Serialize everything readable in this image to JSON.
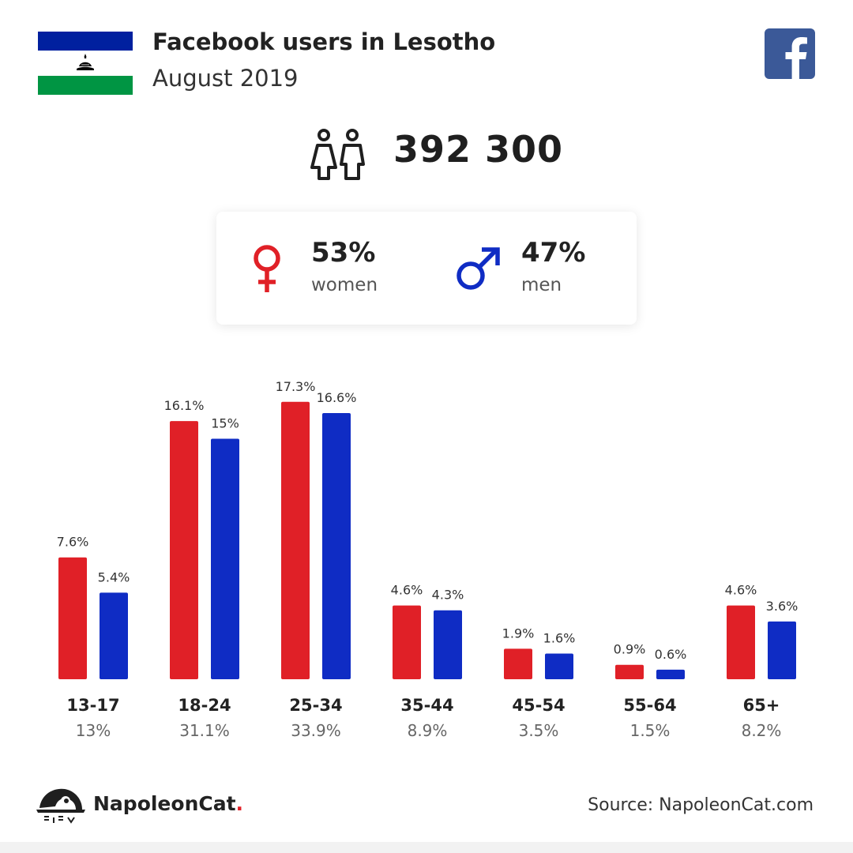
{
  "header": {
    "title": "Facebook users in Lesotho",
    "subtitle": "August 2019"
  },
  "users": {
    "total": "392 300"
  },
  "gender": {
    "women_pct": "53%",
    "women_label": "women",
    "men_pct": "47%",
    "men_label": "men"
  },
  "colors": {
    "women": "#E02027",
    "men": "#0F2CC4",
    "facebook": "#3B5998",
    "flag_blue": "#00209F",
    "flag_green": "#009543"
  },
  "chart_data": {
    "type": "bar",
    "categories": [
      "13-17",
      "18-24",
      "25-34",
      "35-44",
      "45-54",
      "55-64",
      "65+"
    ],
    "category_totals": [
      "13%",
      "31.1%",
      "33.9%",
      "8.9%",
      "3.5%",
      "1.5%",
      "8.2%"
    ],
    "series": [
      {
        "values": [
          7.6,
          16.1,
          17.3,
          4.6,
          1.9,
          0.9,
          4.6
        ],
        "labels": [
          "7.6%",
          "16.1%",
          "17.3%",
          "4.6%",
          "1.9%",
          "0.9%",
          "4.6%"
        ],
        "color": "#E02027"
      },
      {
        "values": [
          5.4,
          15,
          16.6,
          4.3,
          1.6,
          0.6,
          3.6
        ],
        "labels": [
          "5.4%",
          "15%",
          "16.6%",
          "4.3%",
          "1.6%",
          "0.6%",
          "3.6%"
        ],
        "color": "#0F2CC4"
      }
    ],
    "unit": "%",
    "grid": false
  },
  "footer": {
    "brand_name": "NapoleonCat",
    "brand_dot": ".",
    "source": "Source: NapoleonCat.com"
  }
}
